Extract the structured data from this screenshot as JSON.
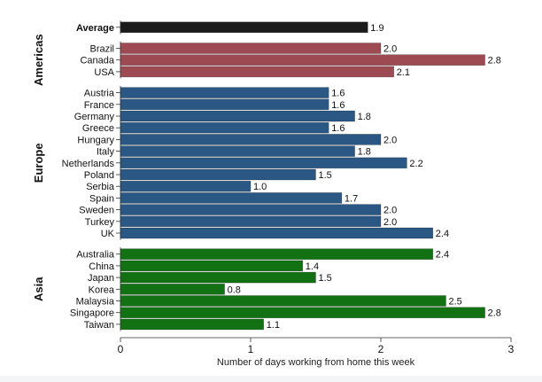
{
  "chart_data": {
    "type": "bar",
    "orientation": "horizontal",
    "xlabel": "Number of days working from home this week",
    "xlim": [
      0,
      3
    ],
    "xticks": [
      0,
      1,
      2,
      3
    ],
    "grid": false,
    "groups": [
      {
        "name": "",
        "color": "#1b1b1b",
        "items": [
          {
            "label": "Average",
            "value": 1.9,
            "bold": true
          }
        ]
      },
      {
        "name": "Americas",
        "color": "#9e4a52",
        "items": [
          {
            "label": "Brazil",
            "value": 2.0
          },
          {
            "label": "Canada",
            "value": 2.8
          },
          {
            "label": "USA",
            "value": 2.1
          }
        ]
      },
      {
        "name": "Europe",
        "color": "#2a5783",
        "items": [
          {
            "label": "Austria",
            "value": 1.6
          },
          {
            "label": "France",
            "value": 1.6
          },
          {
            "label": "Germany",
            "value": 1.8
          },
          {
            "label": "Greece",
            "value": 1.6
          },
          {
            "label": "Hungary",
            "value": 2.0
          },
          {
            "label": "Italy",
            "value": 1.8
          },
          {
            "label": "Netherlands",
            "value": 2.2
          },
          {
            "label": "Poland",
            "value": 1.5
          },
          {
            "label": "Serbia",
            "value": 1.0
          },
          {
            "label": "Spain",
            "value": 1.7
          },
          {
            "label": "Sweden",
            "value": 2.0
          },
          {
            "label": "Turkey",
            "value": 2.0
          },
          {
            "label": "UK",
            "value": 2.4
          }
        ]
      },
      {
        "name": "Asia",
        "color": "#127112",
        "items": [
          {
            "label": "Australia",
            "value": 2.4
          },
          {
            "label": "China",
            "value": 1.4
          },
          {
            "label": "Japan",
            "value": 1.5
          },
          {
            "label": "Korea",
            "value": 0.8
          },
          {
            "label": "Malaysia",
            "value": 2.5
          },
          {
            "label": "Singapore",
            "value": 2.8
          },
          {
            "label": "Taiwan",
            "value": 1.1
          }
        ]
      }
    ]
  }
}
